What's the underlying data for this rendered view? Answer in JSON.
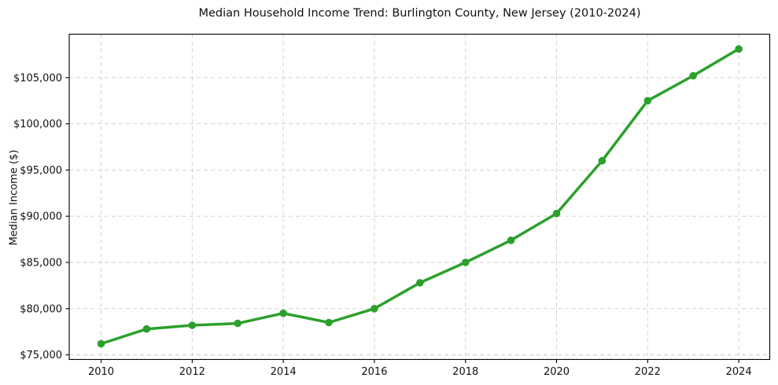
{
  "chart_data": {
    "type": "line",
    "title": "Median Household Income Trend: Burlington County, New Jersey (2010-2024)",
    "xlabel": "",
    "ylabel": "Median Income ($)",
    "x": [
      2010,
      2011,
      2012,
      2013,
      2014,
      2015,
      2016,
      2017,
      2018,
      2019,
      2020,
      2021,
      2022,
      2023,
      2024
    ],
    "series": [
      {
        "name": "Median Household Income",
        "values": [
          76200,
          77800,
          78200,
          78400,
          79500,
          78500,
          80000,
          82800,
          85000,
          87400,
          90300,
          96000,
          102500,
          105200,
          108100
        ]
      }
    ],
    "xticks": [
      2010,
      2012,
      2014,
      2016,
      2018,
      2020,
      2022,
      2024
    ],
    "xtick_labels": [
      "2010",
      "2012",
      "2014",
      "2016",
      "2018",
      "2020",
      "2022",
      "2024"
    ],
    "yticks": [
      75000,
      80000,
      85000,
      90000,
      95000,
      100000,
      105000
    ],
    "ytick_labels": [
      "$75,000",
      "$80,000",
      "$85,000",
      "$90,000",
      "$95,000",
      "$100,000",
      "$105,000"
    ],
    "xlim": [
      2009.3,
      2024.68
    ],
    "ylim": [
      74500,
      109700
    ],
    "grid": true,
    "grid_style": "dashed",
    "legend": "none",
    "colors": {
      "line": "#2ca02c",
      "marker": "#2ca02c",
      "grid": "#cdcdcd",
      "spine": "#000000",
      "text": "#111111",
      "background": "#ffffff"
    }
  }
}
